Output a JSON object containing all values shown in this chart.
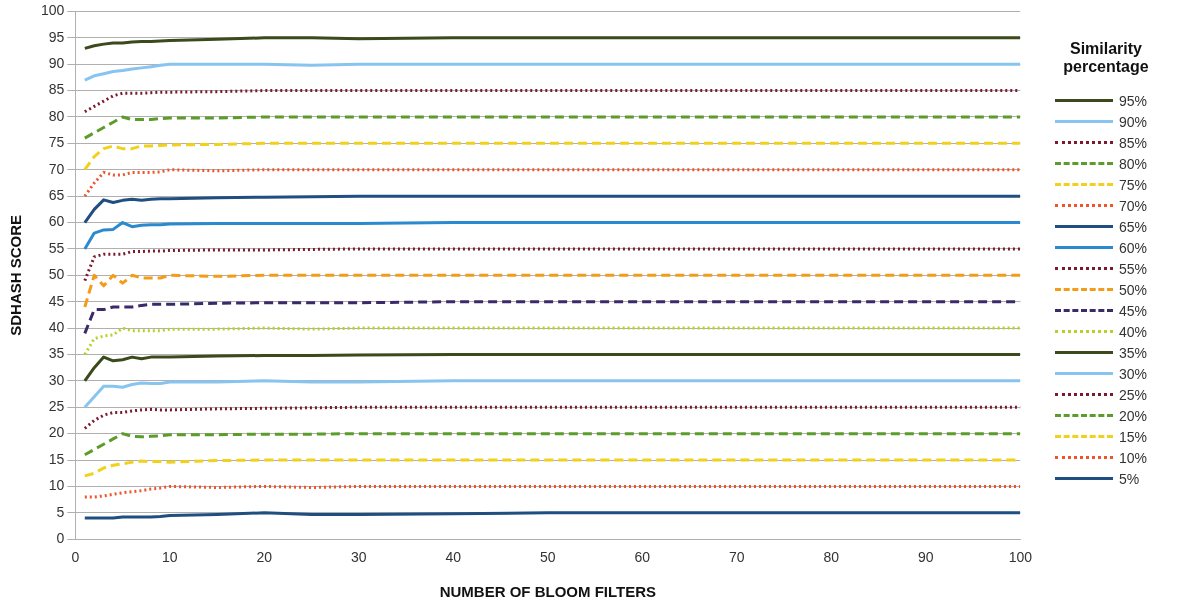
{
  "chart_data": {
    "type": "line",
    "xlabel": "NUMBER OF BLOOM FILTERS",
    "ylabel": "SDHASH SCORE",
    "legend_title": "Similarity percentage",
    "legend": "right",
    "grid": "y",
    "marker": "none",
    "x": [
      1,
      2,
      3,
      4,
      5,
      6,
      7,
      8,
      9,
      10,
      15,
      20,
      25,
      30,
      40,
      50,
      60,
      70,
      80,
      90,
      100
    ],
    "xlim": [
      0,
      100
    ],
    "xticks": [
      0,
      10,
      20,
      30,
      40,
      50,
      60,
      70,
      80,
      90,
      100
    ],
    "ylim": [
      0,
      100
    ],
    "yticks": [
      0,
      5,
      10,
      15,
      20,
      25,
      30,
      35,
      40,
      45,
      50,
      55,
      60,
      65,
      70,
      75,
      80,
      85,
      90,
      95,
      100
    ],
    "series": [
      {
        "name": "95%",
        "color": "#3a4a1a",
        "line_style": "solid",
        "values": [
          93,
          93.5,
          93.8,
          94,
          94,
          94.2,
          94.3,
          94.3,
          94.4,
          94.5,
          94.7,
          95,
          95,
          94.8,
          95,
          95,
          95,
          95,
          95,
          95,
          95
        ]
      },
      {
        "name": "90%",
        "color": "#87c4ef",
        "line_style": "solid",
        "values": [
          87,
          87.8,
          88.2,
          88.6,
          88.8,
          89.1,
          89.3,
          89.5,
          89.8,
          90,
          90,
          90,
          89.8,
          90,
          90,
          90,
          90,
          90,
          90,
          90,
          90
        ]
      },
      {
        "name": "85%",
        "color": "#7b1a2e",
        "line_style": "dotted",
        "values": [
          81,
          82,
          83,
          84,
          84.5,
          84.5,
          84.5,
          84.6,
          84.7,
          84.7,
          84.8,
          85,
          85,
          85,
          85,
          85,
          85,
          85,
          85,
          85,
          85
        ]
      },
      {
        "name": "80%",
        "color": "#5c9c2a",
        "line_style": "dashed",
        "values": [
          76,
          77,
          78,
          79,
          80,
          79.5,
          79.5,
          79.5,
          79.7,
          79.8,
          79.8,
          80,
          80,
          80,
          80,
          80,
          80,
          80,
          80,
          80,
          80
        ]
      },
      {
        "name": "75%",
        "color": "#f2d11c",
        "line_style": "dashed",
        "values": [
          70,
          72.5,
          74,
          74.5,
          74,
          74,
          74.5,
          74.5,
          74.6,
          74.7,
          74.8,
          75,
          75,
          75,
          75,
          75,
          75,
          75,
          75,
          75,
          75
        ]
      },
      {
        "name": "70%",
        "color": "#f0542a",
        "line_style": "dotted",
        "values": [
          65,
          67.5,
          69.5,
          69,
          69,
          69.5,
          69.5,
          69.5,
          69.6,
          70,
          69.8,
          70,
          70,
          70,
          70,
          70,
          70,
          70,
          70,
          70,
          70
        ]
      },
      {
        "name": "65%",
        "color": "#1f4e80",
        "line_style": "solid",
        "values": [
          60,
          62.5,
          64.3,
          63.8,
          64.2,
          64.4,
          64.2,
          64.4,
          64.5,
          64.5,
          64.7,
          64.8,
          64.9,
          65,
          65,
          65,
          65,
          65,
          65,
          65,
          65
        ]
      },
      {
        "name": "60%",
        "color": "#2a8ad0",
        "line_style": "solid",
        "values": [
          55,
          58,
          58.6,
          58.7,
          60,
          59.2,
          59.5,
          59.6,
          59.6,
          59.7,
          59.8,
          59.8,
          59.8,
          59.8,
          60,
          60,
          60,
          60,
          60,
          60,
          60
        ]
      },
      {
        "name": "55%",
        "color": "#7b1a2e",
        "line_style": "dotted",
        "values": [
          49,
          53.5,
          54,
          54,
          54,
          54.5,
          54.5,
          54.6,
          54.6,
          54.7,
          54.8,
          54.8,
          54.9,
          55,
          55,
          55,
          55,
          55,
          55,
          55,
          55
        ]
      },
      {
        "name": "50%",
        "color": "#f39c1a",
        "line_style": "dashed",
        "values": [
          44,
          50,
          48,
          50,
          48.5,
          50,
          49.5,
          49.5,
          49.5,
          50,
          49.8,
          50,
          50,
          50,
          50,
          50,
          50,
          50,
          50,
          50,
          50
        ]
      },
      {
        "name": "45%",
        "color": "#3a2a6a",
        "line_style": "dashed",
        "values": [
          39,
          43.5,
          43.5,
          44,
          44,
          44,
          44.3,
          44.5,
          44.5,
          44.5,
          44.7,
          44.8,
          44.8,
          44.8,
          45,
          45,
          45,
          45,
          45,
          45,
          45
        ]
      },
      {
        "name": "40%",
        "color": "#b8d12a",
        "line_style": "dotted",
        "values": [
          35,
          38,
          38.5,
          38.7,
          40,
          39.5,
          39.5,
          39.5,
          39.5,
          39.8,
          39.8,
          40,
          39.8,
          40,
          40,
          40,
          40,
          40,
          40,
          40,
          40
        ]
      },
      {
        "name": "35%",
        "color": "#3a4a1a",
        "line_style": "solid",
        "values": [
          30,
          32.5,
          34.5,
          33.8,
          34,
          34.5,
          34.2,
          34.5,
          34.5,
          34.5,
          34.7,
          34.8,
          34.8,
          34.9,
          35,
          35,
          35,
          35,
          35,
          35,
          35
        ]
      },
      {
        "name": "30%",
        "color": "#87c4ef",
        "line_style": "solid",
        "values": [
          25,
          27,
          29,
          29,
          28.8,
          29.3,
          29.6,
          29.5,
          29.5,
          29.8,
          29.8,
          30,
          29.8,
          29.8,
          30,
          30,
          30,
          30,
          30,
          30,
          30
        ]
      },
      {
        "name": "25%",
        "color": "#7b1a2e",
        "line_style": "dotted",
        "values": [
          21,
          22.5,
          23.5,
          24,
          24,
          24.3,
          24.5,
          24.6,
          24.5,
          24.5,
          24.7,
          24.8,
          24.9,
          25,
          25,
          25,
          25,
          25,
          25,
          25,
          25
        ]
      },
      {
        "name": "20%",
        "color": "#5c9c2a",
        "line_style": "dashed",
        "values": [
          16,
          17,
          18,
          19,
          20,
          19.5,
          19.4,
          19.5,
          19.6,
          19.8,
          19.8,
          19.9,
          19.9,
          20,
          20,
          20,
          20,
          20,
          20,
          20,
          20
        ]
      },
      {
        "name": "15%",
        "color": "#f2d11c",
        "line_style": "dashed",
        "values": [
          12,
          12.5,
          13.5,
          14,
          14.3,
          14.6,
          14.8,
          14.7,
          14.7,
          14.6,
          14.9,
          15,
          15,
          15,
          15,
          15,
          15,
          15,
          15,
          15,
          15
        ]
      },
      {
        "name": "10%",
        "color": "#f0542a",
        "line_style": "dotted",
        "values": [
          8,
          8,
          8.2,
          8.5,
          8.8,
          9,
          9.2,
          9.5,
          9.7,
          10,
          9.8,
          10,
          9.8,
          10,
          10,
          10,
          10,
          10,
          10,
          10,
          10
        ]
      },
      {
        "name": "5%",
        "color": "#1f4e80",
        "line_style": "solid",
        "values": [
          4,
          4,
          4,
          4,
          4.2,
          4.2,
          4.2,
          4.2,
          4.3,
          4.5,
          4.7,
          5,
          4.7,
          4.7,
          4.8,
          5,
          5,
          5,
          5,
          5,
          5
        ]
      }
    ]
  }
}
